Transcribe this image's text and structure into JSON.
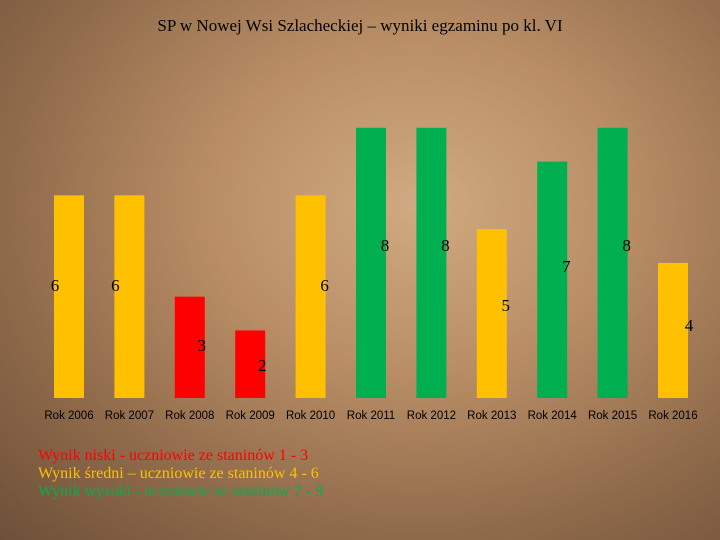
{
  "title": "SP w Nowej Wsi Szlacheckiej – wyniki egzaminu po kl. VI",
  "colors": {
    "low": "#FF0000",
    "mid": "#FFC000",
    "high": "#00B050"
  },
  "chart_data": {
    "type": "bar",
    "title": "SP w Nowej Wsi Szlacheckiej – wyniki egzaminu po kl. VI",
    "categories": [
      "Rok 2006",
      "Rok 2007",
      "Rok 2008",
      "Rok 2009",
      "Rok 2010",
      "Rok 2011",
      "Rok 2012",
      "Rok 2013",
      "Rok 2014",
      "Rok 2015",
      "Rok 2016"
    ],
    "values": [
      6,
      6,
      3,
      2,
      6,
      8,
      8,
      5,
      7,
      8,
      4
    ],
    "levels": [
      "mid",
      "mid",
      "low",
      "low",
      "mid",
      "high",
      "high",
      "mid",
      "high",
      "high",
      "mid"
    ],
    "ylim": [
      0,
      9
    ],
    "grid": false,
    "xlabel": "",
    "ylabel": ""
  },
  "legend": [
    {
      "text": "Wynik niski - uczniowie ze staninów 1 - 3",
      "level": "low"
    },
    {
      "text": "Wynik średni – uczniowie ze staninów 4 - 6",
      "level": "mid"
    },
    {
      "text": "Wynik wysoki - uczniowie ze staninów 7 - 9",
      "level": "high"
    }
  ]
}
